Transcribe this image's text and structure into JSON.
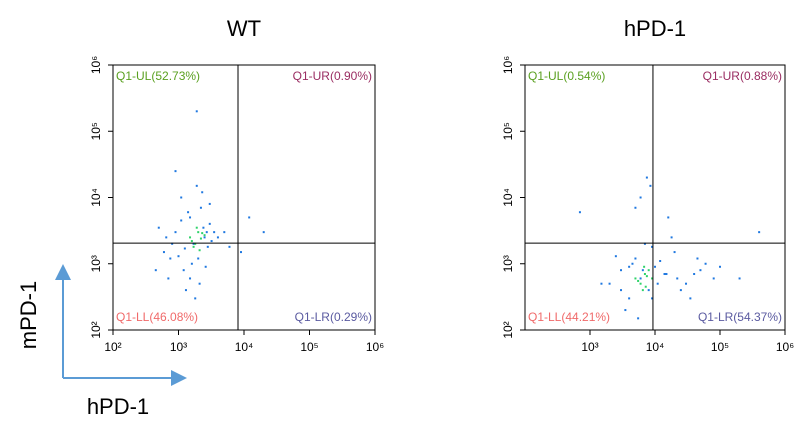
{
  "figure": {
    "ylabel": "mPD-1",
    "xlabel": "hPD-1"
  },
  "chart_data": [
    {
      "type": "scatter",
      "title": "WT",
      "log_x": true,
      "log_y": true,
      "xlim": [
        100,
        1000000
      ],
      "ylim": [
        100,
        1000000
      ],
      "xticks": [
        {
          "value": 100,
          "label": "10²"
        },
        {
          "value": 1000,
          "label": "10³"
        },
        {
          "value": 10000,
          "label": "10⁴"
        },
        {
          "value": 100000,
          "label": "10⁵"
        },
        {
          "value": 1000000,
          "label": "10⁶"
        }
      ],
      "yticks": [
        {
          "value": 100,
          "label": "10²"
        },
        {
          "value": 1000,
          "label": "10³"
        },
        {
          "value": 10000,
          "label": "10⁴"
        },
        {
          "value": 100000,
          "label": "10⁵"
        },
        {
          "value": 1000000,
          "label": "10⁶"
        }
      ],
      "gate": {
        "x": 8100,
        "y": 2050
      },
      "points": [
        {
          "color": "#1f78e0",
          "x": [
            600,
            900,
            1200,
            1500,
            2000,
            2500,
            3000,
            700,
            1100,
            1700,
            2200,
            2800,
            3500,
            800,
            1300,
            1900,
            2600,
            4000,
            500,
            1000,
            1400,
            2100,
            3200,
            5000,
            650,
            1250,
            1800,
            2400,
            6000,
            900,
            1600,
            2300,
            450,
            1100,
            2700,
            1500,
            12000,
            20000,
            9000,
            1900,
            750,
            3000
          ],
          "y": [
            1500,
            3000,
            800,
            5000,
            1200,
            2500,
            4000,
            600,
            10000,
            2000,
            7000,
            1800,
            3000,
            2000,
            400,
            15000,
            900,
            2500,
            3500,
            1300,
            6000,
            500,
            2200,
            3000,
            2500,
            1700,
            300,
            3500,
            1800,
            25000,
            1000,
            12000,
            800,
            4500,
            3000,
            600,
            5000,
            3000,
            1500,
            200000,
            1200,
            8000
          ]
        },
        {
          "color": "#2fd36a",
          "x": [
            1500,
            1800,
            2000,
            2200,
            1700,
            2500,
            1900,
            1600,
            2100,
            2300
          ],
          "y": [
            2500,
            2000,
            3000,
            2400,
            1800,
            2700,
            3500,
            2200,
            1600,
            2900
          ]
        }
      ],
      "annotations": [
        {
          "text": "Q1-UL(52.73%)",
          "corner": "top-left",
          "color": "#5aa020"
        },
        {
          "text": "Q1-UR(0.90%)",
          "corner": "top-right",
          "color": "#9a2d62"
        },
        {
          "text": "Q1-LL(46.08%)",
          "corner": "bottom-left",
          "color": "#f06a6a"
        },
        {
          "text": "Q1-LR(0.29%)",
          "corner": "bottom-right",
          "color": "#5a5aa0"
        }
      ]
    },
    {
      "type": "scatter",
      "title": "hPD-1",
      "log_x": true,
      "log_y": true,
      "xlim": [
        100,
        1000000
      ],
      "ylim": [
        100,
        1000000
      ],
      "xticks": [
        {
          "value": 1000,
          "label": "10³"
        },
        {
          "value": 10000,
          "label": "10⁴"
        },
        {
          "value": 100000,
          "label": "10⁵"
        },
        {
          "value": 1000000,
          "label": "10⁶"
        }
      ],
      "yticks": [
        {
          "value": 100,
          "label": "10²"
        },
        {
          "value": 1000,
          "label": "10³"
        },
        {
          "value": 10000,
          "label": "10⁴"
        },
        {
          "value": 100000,
          "label": "10⁵"
        },
        {
          "value": 1000000,
          "label": "10⁶"
        }
      ],
      "gate": {
        "x": 9300,
        "y": 2050
      },
      "points": [
        {
          "color": "#1f78e0",
          "x": [
            2000,
            3000,
            4000,
            5000,
            6000,
            8000,
            10000,
            15000,
            20000,
            30000,
            50000,
            80000,
            3500,
            4500,
            7000,
            9000,
            12000,
            25000,
            40000,
            100000,
            2500,
            5500,
            6500,
            11000,
            18000,
            60000,
            200000,
            3000,
            7500,
            14000,
            35000,
            4000,
            9000,
            22000,
            1500,
            45000,
            6000,
            8500,
            5000,
            16000,
            700,
            400000
          ],
          "y": [
            500,
            800,
            300,
            1200,
            600,
            400,
            900,
            700,
            1500,
            500,
            800,
            600,
            200,
            1000,
            2000,
            300,
            1100,
            400,
            700,
            900,
            1300,
            150,
            800,
            500,
            2500,
            1000,
            600,
            400,
            20000,
            700,
            300,
            900,
            1800,
            600,
            500,
            1200,
            10000,
            15000,
            7000,
            5000,
            6000,
            3000
          ]
        },
        {
          "color": "#2fd36a",
          "x": [
            5000,
            6000,
            7000,
            8000,
            6500,
            7500,
            5500,
            9000,
            6800,
            7200
          ],
          "y": [
            600,
            500,
            700,
            800,
            400,
            650,
            550,
            600,
            900,
            450
          ]
        }
      ],
      "annotations": [
        {
          "text": "Q1-UL(0.54%)",
          "corner": "top-left",
          "color": "#5aa020"
        },
        {
          "text": "Q1-UR(0.88%)",
          "corner": "top-right",
          "color": "#9a2d62"
        },
        {
          "text": "Q1-LL(44.21%)",
          "corner": "bottom-left",
          "color": "#f06a6a"
        },
        {
          "text": "Q1-LR(54.37%)",
          "corner": "bottom-right",
          "color": "#5a5aa0"
        }
      ]
    }
  ]
}
